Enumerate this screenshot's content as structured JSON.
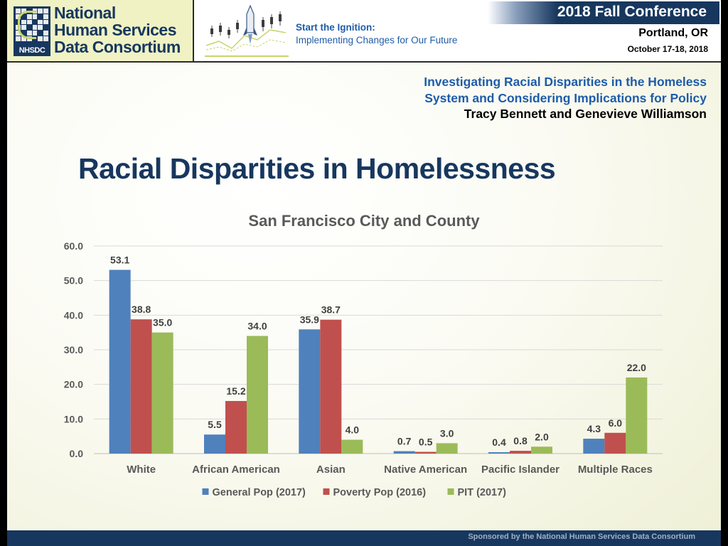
{
  "header": {
    "org_lines": [
      "National",
      "Human Services",
      "Data Consortium"
    ],
    "logo_abbr": "NHSDC",
    "tagline_line1": "Start the Ignition:",
    "tagline_line2": "Implementing Changes for Our Future",
    "conference_title": "2018 Fall Conference",
    "conference_city": "Portland, OR",
    "conference_dates": "October 17-18, 2018"
  },
  "presentation": {
    "title_line1": "Investigating Racial Disparities in the Homeless",
    "title_line2": "System and Considering Implications for Policy",
    "presenters": "Tracy Bennett and Genevieve Williamson"
  },
  "slide_title": "Racial Disparities in Homelessness",
  "footer": {
    "text": "Sponsored by the National Human Services Data Consortium"
  },
  "chart_data": {
    "type": "bar",
    "title": "San Francisco City and County",
    "categories": [
      "White",
      "African American",
      "Asian",
      "Native American",
      "Pacific Islander",
      "Multiple Races"
    ],
    "series": [
      {
        "name": "General Pop (2017)",
        "color": "#4f81bd",
        "values": [
          53.1,
          5.5,
          35.9,
          0.7,
          0.4,
          4.3
        ]
      },
      {
        "name": "Poverty Pop (2016)",
        "color": "#c0504d",
        "values": [
          38.8,
          15.2,
          38.7,
          0.5,
          0.8,
          6.0
        ]
      },
      {
        "name": "PIT (2017)",
        "color": "#9bbb59",
        "values": [
          35.0,
          34.0,
          4.0,
          3.0,
          2.0,
          22.0
        ]
      }
    ],
    "ylim": [
      0,
      60
    ],
    "yticks": [
      0,
      10,
      20,
      30,
      40,
      50,
      60
    ],
    "value_decimals": 1,
    "grid": true,
    "legend_position": "bottom"
  }
}
